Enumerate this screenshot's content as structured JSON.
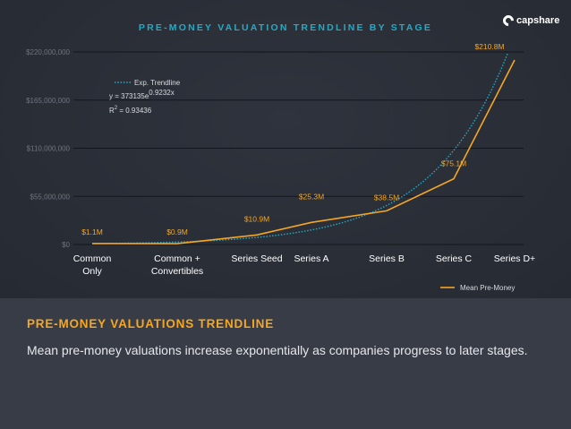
{
  "slide": {
    "chart_title": "PRE-MONEY VALUATION TRENDLINE BY STAGE",
    "logo_text": "capshare",
    "heading": "PRE-MONEY VALUATIONS TRENDLINE",
    "description": "Mean pre-money valuations increase exponentially as companies progress to later stages."
  },
  "chart_data": {
    "type": "line",
    "title": "PRE-MONEY VALUATION TRENDLINE BY STAGE",
    "categories": [
      [
        "Common",
        "Only"
      ],
      [
        "Common +",
        "Convertibles"
      ],
      [
        "Series Seed"
      ],
      [
        "Series A"
      ],
      [
        "Series B"
      ],
      [
        "Series C"
      ],
      [
        "Series D+"
      ]
    ],
    "series": [
      {
        "name": "Mean Pre-Money",
        "values": [
          1100000,
          900000,
          10900000,
          25300000,
          38500000,
          75100000,
          210800000
        ],
        "labels": [
          "$1.1M",
          "$0.9M",
          "$10.9M",
          "$25.3M",
          "$38.5M",
          "$75.1M",
          "$210.8M"
        ],
        "color": "#f5a623"
      },
      {
        "name": "Exp. Trendline",
        "type": "exponential-fit",
        "coef": 373135,
        "exp": 0.9232,
        "color": "#27a9c4"
      }
    ],
    "y_ticks": [
      0,
      55000000,
      110000000,
      165000000,
      220000000
    ],
    "y_tick_labels": [
      "$0",
      "$55,000,000",
      "$110,000,000",
      "$165,000,000",
      "$220,000,000"
    ],
    "ylim": [
      0,
      220000000
    ],
    "equation": {
      "prefix": "y = 373135e",
      "exponent": "0.9232x"
    },
    "r_squared": {
      "base": "R",
      "power": "2",
      "value": " = 0.93436"
    },
    "grid": true,
    "legend": "bottom-right",
    "colors": {
      "axis_text": "#6f7480",
      "cat_text": "#ffffff",
      "grid": "#14161b",
      "legend_text": "#d8dade"
    }
  }
}
